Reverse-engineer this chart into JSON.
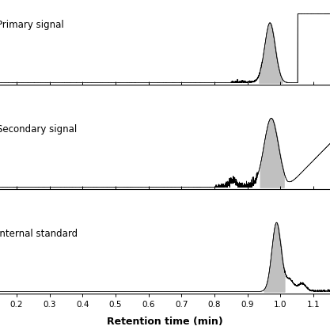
{
  "panel_labels": [
    "Primary signal",
    "Secondary signal",
    "Internal standard"
  ],
  "xlabel": "Retention time (min)",
  "xlim": [
    0.15,
    1.15
  ],
  "xticks": [
    0.2,
    0.3,
    0.4,
    0.5,
    0.6,
    0.7,
    0.8,
    0.9,
    1.0,
    1.1
  ],
  "background_color": "#ffffff",
  "line_color": "#000000",
  "fill_color": "#c0c0c0",
  "label_fontsize": 8.5,
  "tick_fontsize": 7.5,
  "xlabel_fontsize": 9
}
